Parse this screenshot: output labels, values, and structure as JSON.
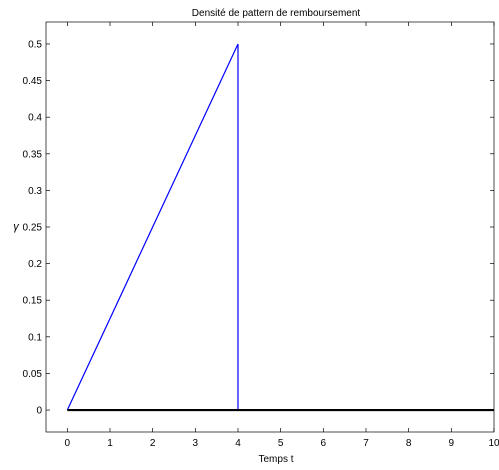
{
  "chart_data": {
    "type": "line",
    "title": "Densité de pattern de remboursement",
    "xlabel": "Temps t",
    "ylabel": "γ",
    "xlim": [
      -0.5,
      10
    ],
    "ylim": [
      -0.03,
      0.53
    ],
    "x_ticks": [
      0,
      1,
      2,
      3,
      4,
      5,
      6,
      7,
      8,
      9,
      10
    ],
    "y_ticks": [
      0,
      0.05,
      0.1,
      0.15,
      0.2,
      0.25,
      0.3,
      0.35,
      0.4,
      0.45,
      0.5
    ],
    "y_tick_labels": [
      "0",
      "0.05",
      "0.1",
      "0.15",
      "0.2",
      "0.25",
      "0.3",
      "0.35",
      "0.4",
      "0.45",
      "0.5"
    ],
    "grid": false,
    "series": [
      {
        "color": "#0000ff",
        "points": [
          [
            0,
            0
          ],
          [
            4,
            0.5
          ],
          [
            4,
            0
          ]
        ]
      },
      {
        "color": "#000000",
        "points": [
          [
            0,
            0
          ],
          [
            10,
            0
          ]
        ]
      }
    ]
  }
}
